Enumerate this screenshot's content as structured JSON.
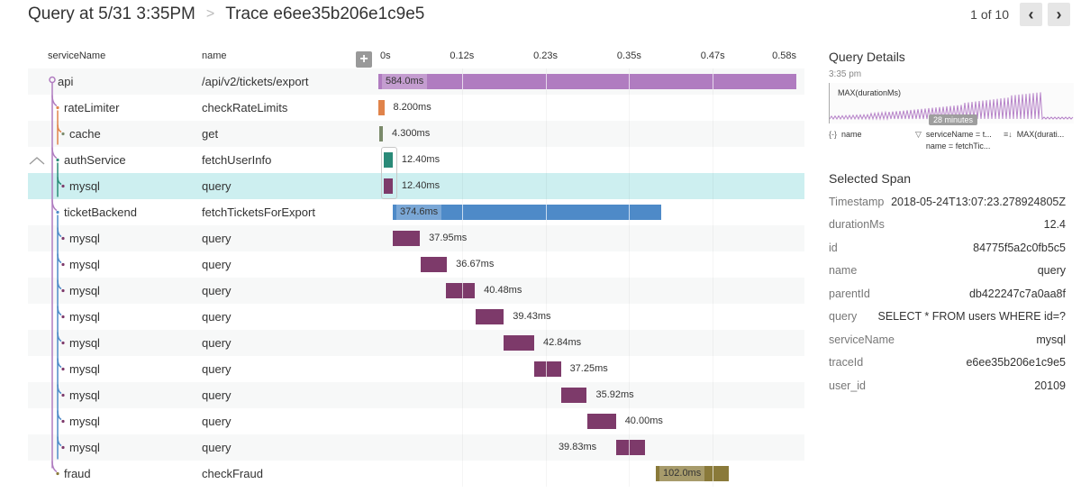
{
  "header": {
    "breadcrumb_query": "Query at 5/31 3:35PM",
    "breadcrumb_sep_icon": "chevron-right-icon",
    "breadcrumb_trace": "Trace e6ee35b206e1c9e5"
  },
  "pager": {
    "count": "1 of 10",
    "prev_icon": "chevron-left-icon",
    "next_icon": "chevron-right-icon",
    "prev_glyph": "‹",
    "next_glyph": "›"
  },
  "trace": {
    "columns": {
      "service": "serviceName",
      "name": "name"
    },
    "expand_glyph": "+",
    "ticks": [
      "0s",
      "0.12s",
      "0.23s",
      "0.35s",
      "0.47s",
      "0.58s"
    ],
    "tick_values_ms": [
      0,
      116.8,
      233.6,
      350.4,
      467.2,
      584
    ],
    "total_ms": 584,
    "spans": [
      {
        "service": "api",
        "name": "/api/v2/tickets/export",
        "start_ms": 0,
        "duration_ms": 584.0,
        "label": "584.0ms",
        "color": "#b07cc0",
        "depth": 0,
        "label_inside": true
      },
      {
        "service": "rateLimiter",
        "name": "checkRateLimits",
        "start_ms": 0,
        "duration_ms": 8.2,
        "label": "8.200ms",
        "color": "#e0834a",
        "depth": 1
      },
      {
        "service": "cache",
        "name": "get",
        "start_ms": 1.3,
        "duration_ms": 4.3,
        "label": "4.300ms",
        "color": "#7a8a6a",
        "depth": 2
      },
      {
        "service": "authService",
        "name": "fetchUserInfo",
        "start_ms": 7.6,
        "duration_ms": 12.4,
        "label": "12.40ms",
        "color": "#2a8a78",
        "depth": 1,
        "collapsible": true
      },
      {
        "service": "mysql",
        "name": "query",
        "start_ms": 7.6,
        "duration_ms": 12.4,
        "label": "12.40ms",
        "color": "#7d3a6a",
        "depth": 2,
        "selected": true
      },
      {
        "service": "ticketBackend",
        "name": "fetchTicketsForExport",
        "start_ms": 20.1,
        "duration_ms": 374.6,
        "label": "374.6ms",
        "color": "#4e8ac8",
        "depth": 1,
        "label_inside": true
      },
      {
        "service": "mysql",
        "name": "query",
        "start_ms": 20.1,
        "duration_ms": 37.95,
        "label": "37.95ms",
        "color": "#7d3a6a",
        "depth": 2
      },
      {
        "service": "mysql",
        "name": "query",
        "start_ms": 59.2,
        "duration_ms": 36.67,
        "label": "36.67ms",
        "color": "#7d3a6a",
        "depth": 2
      },
      {
        "service": "mysql",
        "name": "query",
        "start_ms": 94.4,
        "duration_ms": 40.48,
        "label": "40.48ms",
        "color": "#7d3a6a",
        "depth": 2
      },
      {
        "service": "mysql",
        "name": "query",
        "start_ms": 135.9,
        "duration_ms": 39.43,
        "label": "39.43ms",
        "color": "#7d3a6a",
        "depth": 2
      },
      {
        "service": "mysql",
        "name": "query",
        "start_ms": 174.9,
        "duration_ms": 42.84,
        "label": "42.84ms",
        "color": "#7d3a6a",
        "depth": 2
      },
      {
        "service": "mysql",
        "name": "query",
        "start_ms": 217.7,
        "duration_ms": 37.25,
        "label": "37.25ms",
        "color": "#7d3a6a",
        "depth": 2
      },
      {
        "service": "mysql",
        "name": "query",
        "start_ms": 255.4,
        "duration_ms": 35.92,
        "label": "35.92ms",
        "color": "#7d3a6a",
        "depth": 2
      },
      {
        "service": "mysql",
        "name": "query",
        "start_ms": 291.9,
        "duration_ms": 40.0,
        "label": "40.00ms",
        "color": "#7d3a6a",
        "depth": 2
      },
      {
        "service": "mysql",
        "name": "query",
        "start_ms": 332.2,
        "duration_ms": 39.83,
        "label": "39.83ms",
        "color": "#7d3a6a",
        "depth": 2,
        "label_left": true
      },
      {
        "service": "fraud",
        "name": "checkFraud",
        "start_ms": 387.7,
        "duration_ms": 102.0,
        "label": "102.0ms",
        "color": "#8a7a3a",
        "depth": 1,
        "label_inside": true
      }
    ]
  },
  "query_details": {
    "title": "Query Details",
    "time": "3:35 pm",
    "sparkline_label": "MAX(durationMs)",
    "sparkline_tooltip": "28 minutes",
    "group_by_icon": "braces-icon",
    "group_by_glyph": "{-}",
    "group_by": "name",
    "filter_icon": "filter-icon",
    "filter_glyph": "▽",
    "filters": [
      "serviceName = t...",
      "name = fetchTic..."
    ],
    "sort_icon": "sort-desc-icon",
    "sort_glyph": "≡↓",
    "sort": "MAX(durati..."
  },
  "selected_span": {
    "title": "Selected Span",
    "fields": [
      {
        "key": "Timestamp",
        "value": "2018-05-24T13:07:23.278924805Z"
      },
      {
        "key": "durationMs",
        "value": "12.4"
      },
      {
        "key": "id",
        "value": "84775f5a2c0fb5c5"
      },
      {
        "key": "name",
        "value": "query"
      },
      {
        "key": "parentId",
        "value": "db422247c7a0aa8f"
      },
      {
        "key": "query",
        "value": "SELECT * FROM users WHERE id=?"
      },
      {
        "key": "serviceName",
        "value": "mysql"
      },
      {
        "key": "traceId",
        "value": "e6ee35b206e1c9e5"
      },
      {
        "key": "user_id",
        "value": "20109"
      }
    ]
  }
}
